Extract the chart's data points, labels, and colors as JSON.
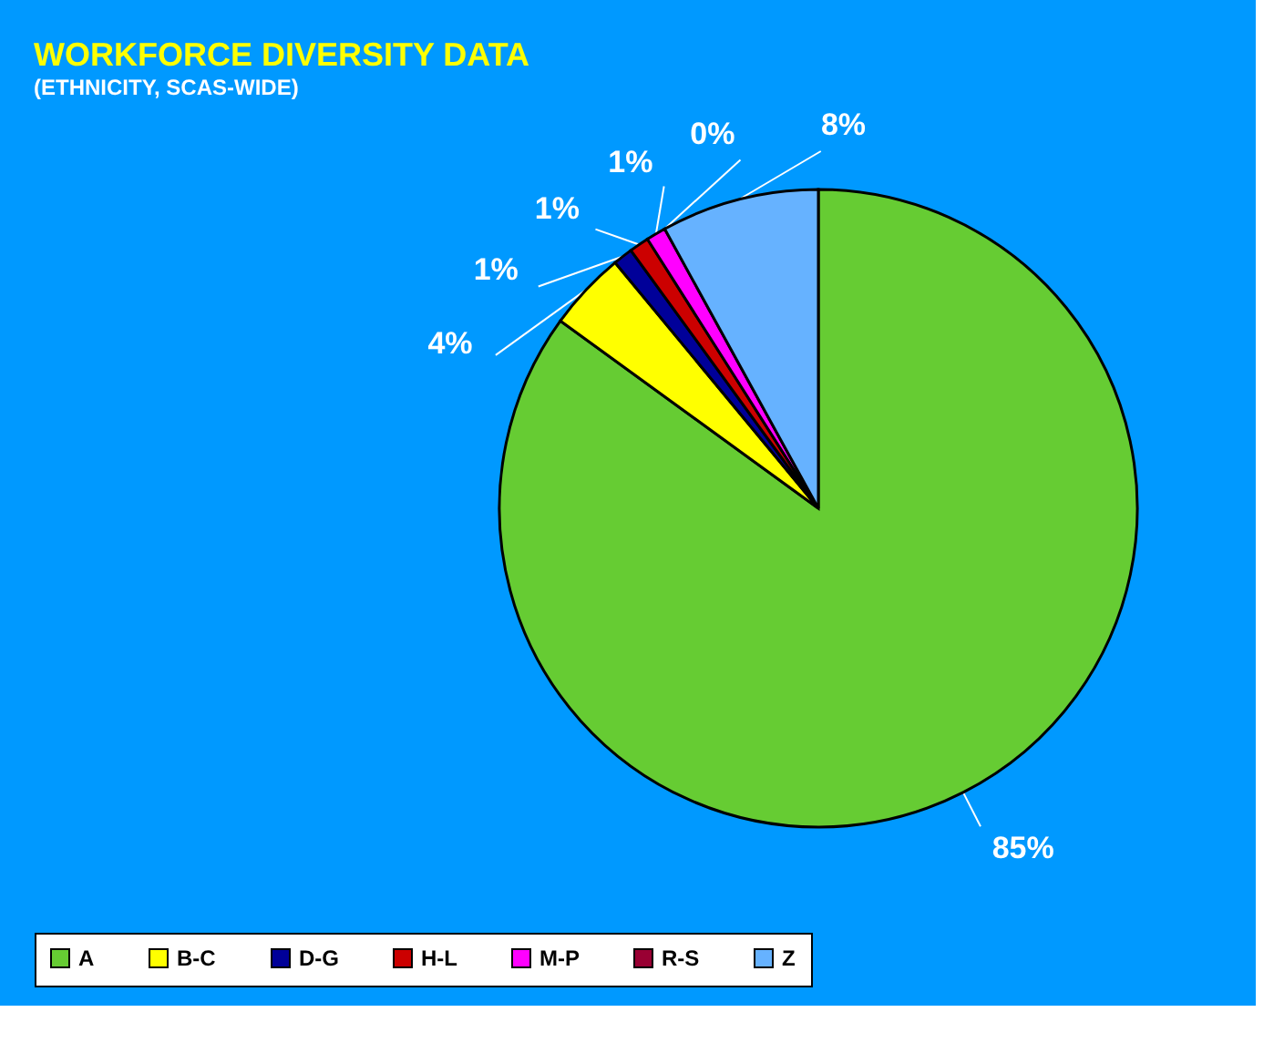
{
  "chart_data": {
    "type": "pie",
    "title": "WORKFORCE DIVERSITY DATA",
    "subtitle": "(ETHNICITY, SCAS-WIDE)",
    "categories": [
      "A",
      "B-C",
      "D-G",
      "H-L",
      "M-P",
      "R-S",
      "Z"
    ],
    "values": [
      85,
      4,
      1,
      1,
      1,
      0,
      8
    ],
    "value_labels": [
      "85%",
      "4%",
      "1%",
      "1%",
      "1%",
      "0%",
      "8%"
    ],
    "colors": [
      "#66cc33",
      "#ffff00",
      "#000099",
      "#cc0000",
      "#ff00ff",
      "#990033",
      "#66b2ff"
    ],
    "legend": "bottom"
  }
}
